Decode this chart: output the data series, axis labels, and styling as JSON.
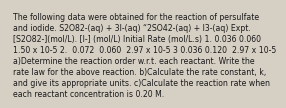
{
  "text": "The following data were obtained for the reaction of persulfate\nand iodide. S2O82-(aq) + 3I-(aq) “2SO42-(aq) + I3-(aq) Expt.\n[S2O82-](mol/L). [I-] (mol/L) Initial Rate (mol/L.s) 1. 0.036 0.060\n1.50 x 10-5 2.  0.072  0.060  2.97 x 10-5 3 0.036 0.120  2.97 x 10-5\na)Determine the reaction order w.r.t. each reactant. Write the\nrate law for the above reaction. b)Calculate the rate constant, k,\nand give its appropriate units. c)Calculate the reaction rate when\neach reactant concentration is 0.20 M.",
  "bg_color": "#d6cfc4",
  "text_color": "#1a1a1a",
  "font_size": 5.55,
  "linespacing": 1.28
}
